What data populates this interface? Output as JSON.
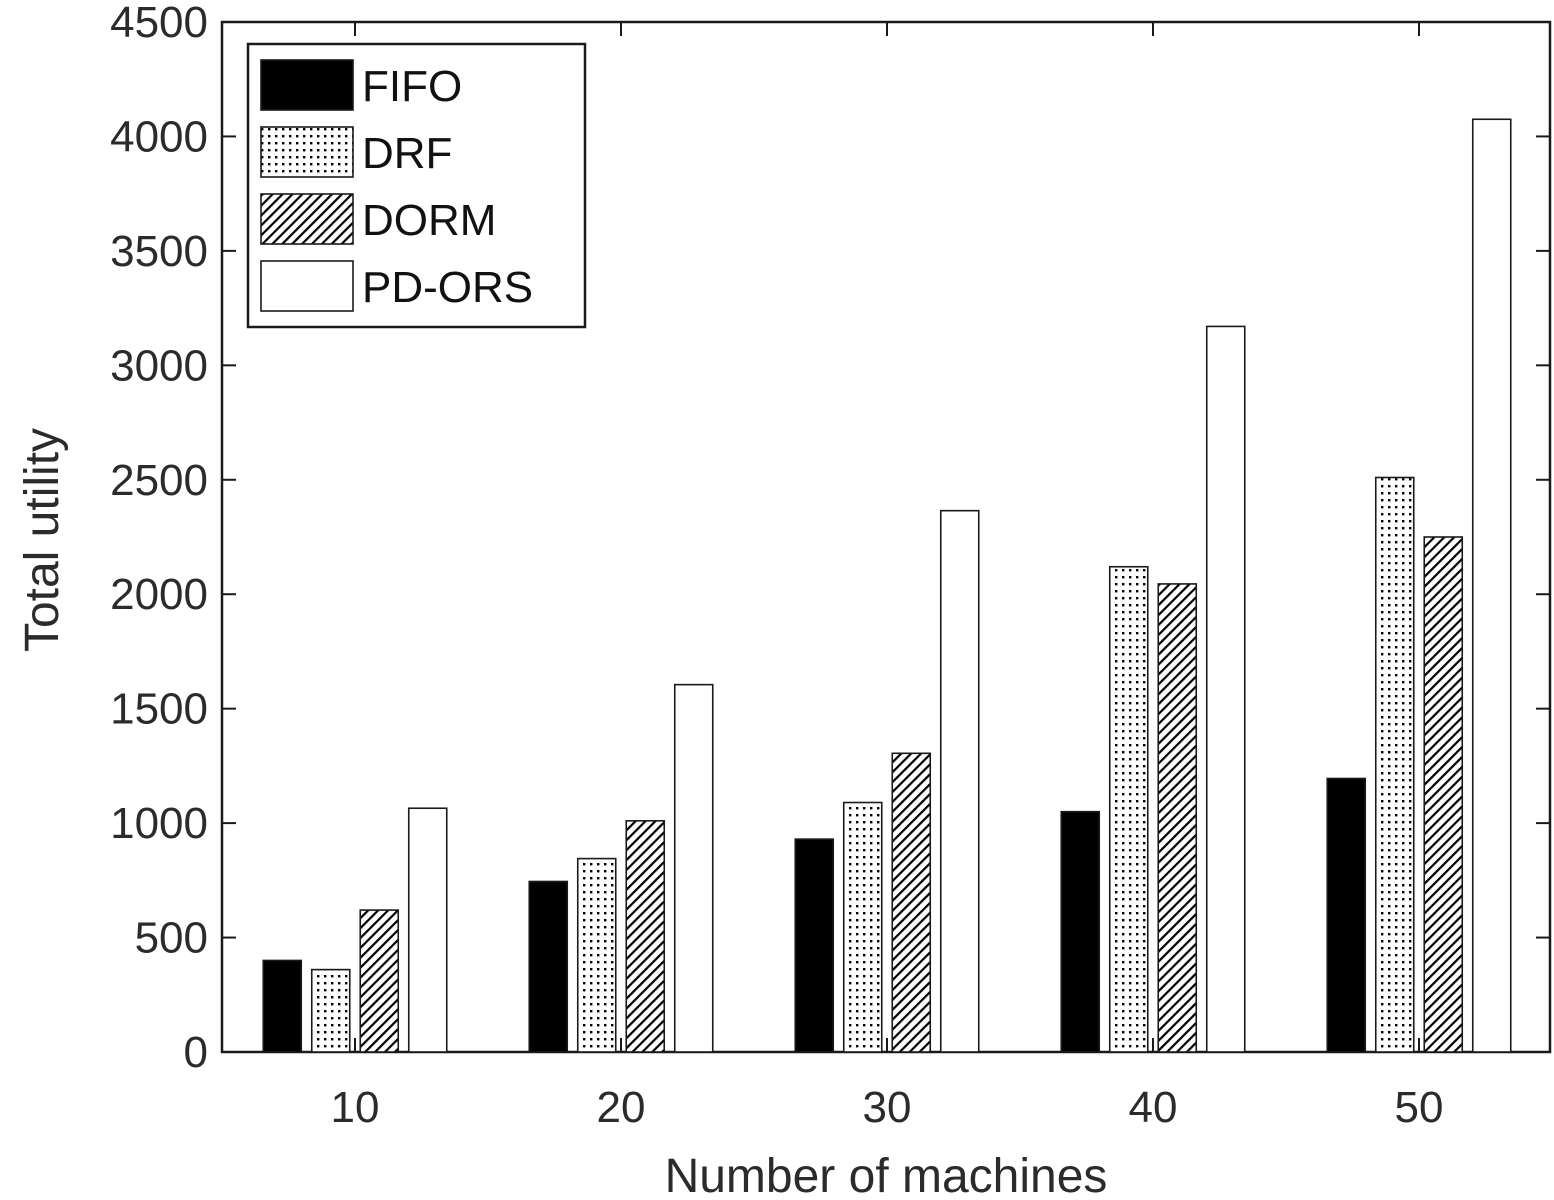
{
  "chart_data": {
    "type": "bar",
    "categories": [
      "10",
      "20",
      "30",
      "40",
      "50"
    ],
    "series": [
      {
        "name": "FIFO",
        "values": [
          400,
          745,
          930,
          1050,
          1195
        ],
        "pattern": "solid-black"
      },
      {
        "name": "DRF",
        "values": [
          360,
          845,
          1090,
          2120,
          2510
        ],
        "pattern": "dots"
      },
      {
        "name": "DORM",
        "values": [
          620,
          1010,
          1305,
          2045,
          2250
        ],
        "pattern": "diagonal-hatch"
      },
      {
        "name": "PD-ORS",
        "values": [
          1065,
          1605,
          2365,
          3170,
          4075
        ],
        "pattern": "white"
      }
    ],
    "xlabel": "Number of machines",
    "ylabel": "Total utility",
    "ylim": [
      0,
      4500
    ],
    "yticks": [
      0,
      500,
      1000,
      1500,
      2000,
      2500,
      3000,
      3500,
      4000,
      4500
    ],
    "grid": false,
    "legend": "top-left",
    "colors": {
      "fifo": "#000000",
      "outline": "#1a1a1a",
      "text": "#2b2b2b"
    }
  }
}
